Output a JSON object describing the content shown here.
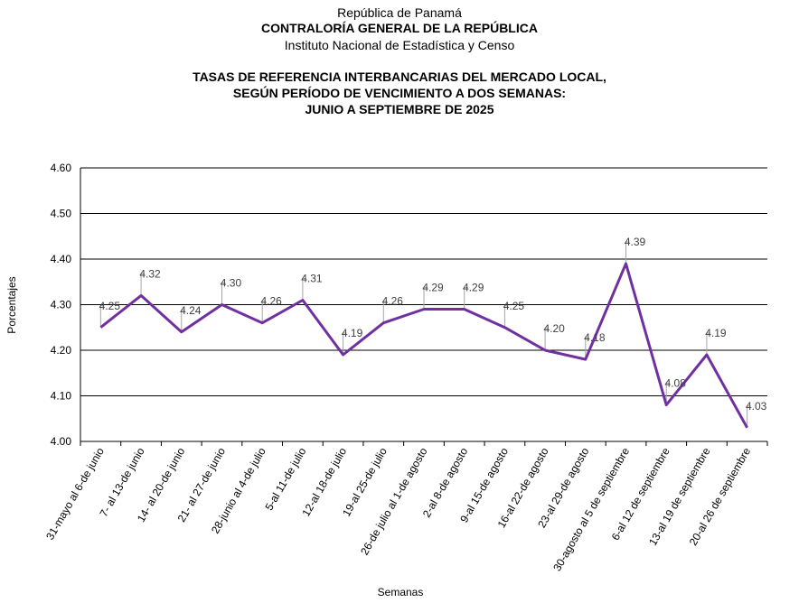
{
  "header": {
    "line1": "República de Panamá",
    "line2": "CONTRALORÍA GENERAL DE LA REPÚBLICA",
    "line3": "Instituto  Nacional de Estadística y Censo"
  },
  "chart_data": {
    "type": "line",
    "title": [
      "TASAS DE REFERENCIA INTERBANCARIAS DEL MERCADO LOCAL,",
      "SEGÚN PERÍODO DE VENCIMIENTO A DOS SEMANAS:",
      "JUNIO A  SEPTIEMBRE DE 2025"
    ],
    "xlabel": "Semanas",
    "ylabel": "Porcentajes",
    "ylim": [
      4.0,
      4.6
    ],
    "yticks": [
      "4.00",
      "4.10",
      "4.20",
      "4.30",
      "4.40",
      "4.50",
      "4.60"
    ],
    "categories": [
      "31-mayo al 6-de junio",
      "7- al 13-de junio",
      "14- al 20-de junio",
      "21- al 27-de junio",
      "28-junio al 4-de julio",
      "5-al 11-de julio",
      "12-al 18-de julio",
      "19-al 25-de julio",
      "26-de julio al 1-de agosto",
      "2-al 8-de agosto",
      "9-al 15-de agosto",
      "16-al 22-de agosto",
      "23-al 29-de agosto",
      "30-agosto al 5 de septiembre",
      "6-al 12 de septiembre",
      "13-al 19 de septiembre",
      "20-al 26 de septiembre"
    ],
    "values": [
      4.25,
      4.32,
      4.24,
      4.3,
      4.26,
      4.31,
      4.19,
      4.26,
      4.29,
      4.29,
      4.25,
      4.2,
      4.18,
      4.39,
      4.08,
      4.19,
      4.03
    ],
    "labels": [
      "4.25",
      "4.32",
      "4.24",
      "4.30",
      "4.26",
      "4.31",
      "4.19",
      "4.26",
      "4.29",
      "4.29",
      "4.25",
      "4.20",
      "4.18",
      "4.39",
      "4.08",
      "4.19",
      "4.03"
    ],
    "grid": true,
    "colors": {
      "line": "#7030a0",
      "grid": "#000000",
      "label": "#404040",
      "leader": "#a6a6a6"
    }
  }
}
